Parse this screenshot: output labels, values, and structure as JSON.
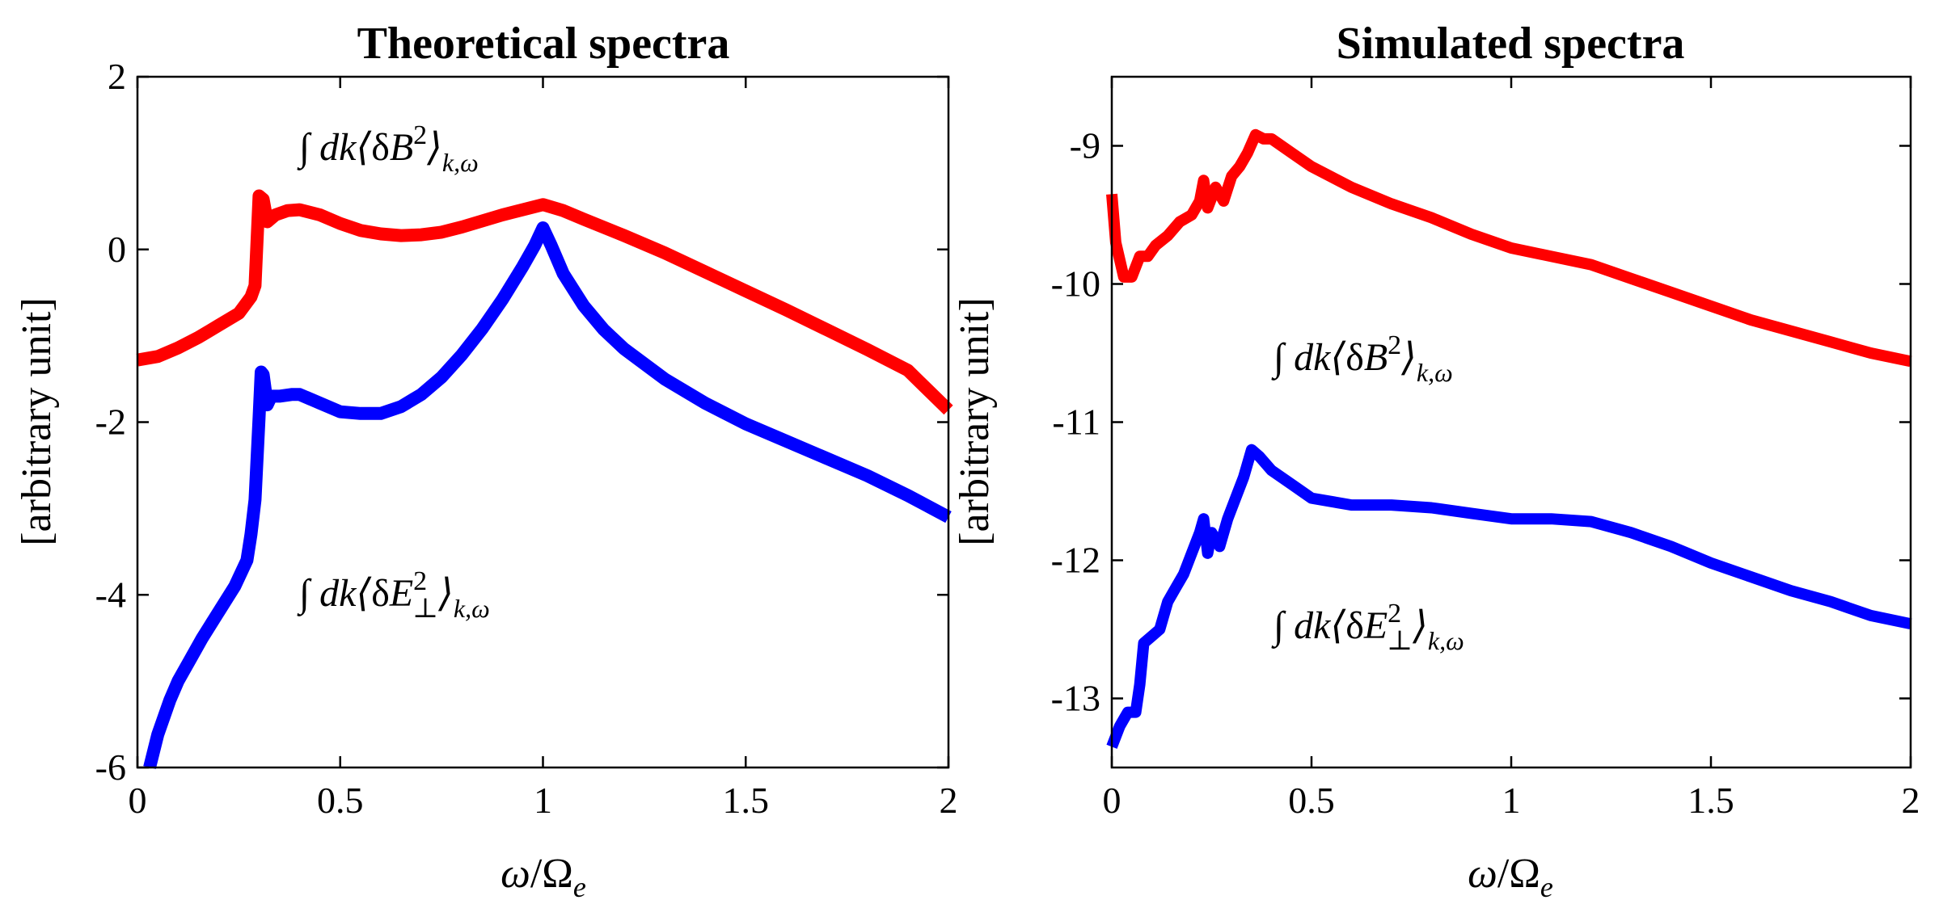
{
  "chart_data": [
    {
      "type": "line",
      "title": "Theoretical spectra",
      "xlabel": "ω/Ω_e",
      "ylabel": "[arbitrary unit]",
      "xlim": [
        0,
        2
      ],
      "ylim": [
        -6,
        2
      ],
      "xticks": [
        "0",
        "0.5",
        "1",
        "1.5",
        "2"
      ],
      "yticks": [
        "-6",
        "-4",
        "-2",
        "0",
        "2"
      ],
      "grid": false,
      "series": [
        {
          "label": "∫ dk⟨δB²⟩k,ω",
          "color": "#ff0000",
          "points": [
            [
              0,
              -1.28
            ],
            [
              0.05,
              -1.24
            ],
            [
              0.1,
              -1.14
            ],
            [
              0.15,
              -1.02
            ],
            [
              0.2,
              -0.88
            ],
            [
              0.25,
              -0.74
            ],
            [
              0.28,
              -0.55
            ],
            [
              0.29,
              -0.42
            ],
            [
              0.3,
              0.62
            ],
            [
              0.31,
              0.58
            ],
            [
              0.32,
              0.32
            ],
            [
              0.34,
              0.4
            ],
            [
              0.37,
              0.45
            ],
            [
              0.4,
              0.46
            ],
            [
              0.45,
              0.4
            ],
            [
              0.5,
              0.3
            ],
            [
              0.55,
              0.22
            ],
            [
              0.6,
              0.18
            ],
            [
              0.65,
              0.16
            ],
            [
              0.7,
              0.17
            ],
            [
              0.75,
              0.2
            ],
            [
              0.8,
              0.26
            ],
            [
              0.85,
              0.33
            ],
            [
              0.9,
              0.4
            ],
            [
              0.95,
              0.46
            ],
            [
              1.0,
              0.52
            ],
            [
              1.05,
              0.45
            ],
            [
              1.1,
              0.35
            ],
            [
              1.2,
              0.16
            ],
            [
              1.3,
              -0.04
            ],
            [
              1.4,
              -0.26
            ],
            [
              1.5,
              -0.48
            ],
            [
              1.6,
              -0.7
            ],
            [
              1.7,
              -0.93
            ],
            [
              1.8,
              -1.16
            ],
            [
              1.9,
              -1.4
            ],
            [
              2.0,
              -1.86
            ]
          ]
        },
        {
          "label": "∫ dk⟨δE⊥²⟩k,ω",
          "color": "#0000ff",
          "points": [
            [
              0.03,
              -6.0
            ],
            [
              0.05,
              -5.62
            ],
            [
              0.08,
              -5.22
            ],
            [
              0.1,
              -5.0
            ],
            [
              0.13,
              -4.75
            ],
            [
              0.16,
              -4.5
            ],
            [
              0.2,
              -4.2
            ],
            [
              0.24,
              -3.9
            ],
            [
              0.27,
              -3.6
            ],
            [
              0.28,
              -3.3
            ],
            [
              0.29,
              -2.9
            ],
            [
              0.3,
              -1.95
            ],
            [
              0.305,
              -1.42
            ],
            [
              0.31,
              -1.45
            ],
            [
              0.32,
              -1.8
            ],
            [
              0.33,
              -1.7
            ],
            [
              0.35,
              -1.7
            ],
            [
              0.38,
              -1.68
            ],
            [
              0.4,
              -1.68
            ],
            [
              0.45,
              -1.78
            ],
            [
              0.5,
              -1.88
            ],
            [
              0.55,
              -1.9
            ],
            [
              0.6,
              -1.9
            ],
            [
              0.65,
              -1.82
            ],
            [
              0.7,
              -1.68
            ],
            [
              0.75,
              -1.48
            ],
            [
              0.8,
              -1.22
            ],
            [
              0.85,
              -0.92
            ],
            [
              0.9,
              -0.58
            ],
            [
              0.95,
              -0.2
            ],
            [
              0.98,
              0.05
            ],
            [
              1.0,
              0.25
            ],
            [
              1.02,
              0.05
            ],
            [
              1.05,
              -0.28
            ],
            [
              1.1,
              -0.65
            ],
            [
              1.15,
              -0.93
            ],
            [
              1.2,
              -1.15
            ],
            [
              1.3,
              -1.5
            ],
            [
              1.4,
              -1.78
            ],
            [
              1.5,
              -2.02
            ],
            [
              1.6,
              -2.22
            ],
            [
              1.7,
              -2.42
            ],
            [
              1.8,
              -2.62
            ],
            [
              1.9,
              -2.85
            ],
            [
              2.0,
              -3.1
            ]
          ]
        }
      ],
      "annotations": [
        {
          "text": "∫ dk⟨δB²⟩k,ω",
          "near_series": 0
        },
        {
          "text": "∫ dk⟨δE⊥²⟩k,ω",
          "near_series": 1
        }
      ]
    },
    {
      "type": "line",
      "title": "Simulated spectra",
      "xlabel": "ω/Ω_e",
      "ylabel": "[arbitrary unit]",
      "xlim": [
        0,
        2
      ],
      "ylim": [
        -13.5,
        -8.5
      ],
      "xticks": [
        "0",
        "0.5",
        "1",
        "1.5",
        "2"
      ],
      "yticks": [
        "-13",
        "-12",
        "-11",
        "-10",
        "-9"
      ],
      "grid": false,
      "series": [
        {
          "label": "∫ dk⟨δB²⟩k,ω",
          "color": "#ff0000",
          "points": [
            [
              0.0,
              -9.35
            ],
            [
              0.01,
              -9.7
            ],
            [
              0.03,
              -9.95
            ],
            [
              0.05,
              -9.95
            ],
            [
              0.07,
              -9.8
            ],
            [
              0.09,
              -9.8
            ],
            [
              0.11,
              -9.72
            ],
            [
              0.14,
              -9.65
            ],
            [
              0.17,
              -9.55
            ],
            [
              0.2,
              -9.5
            ],
            [
              0.22,
              -9.4
            ],
            [
              0.23,
              -9.25
            ],
            [
              0.24,
              -9.45
            ],
            [
              0.26,
              -9.3
            ],
            [
              0.28,
              -9.4
            ],
            [
              0.3,
              -9.22
            ],
            [
              0.32,
              -9.15
            ],
            [
              0.34,
              -9.05
            ],
            [
              0.36,
              -8.92
            ],
            [
              0.38,
              -8.95
            ],
            [
              0.4,
              -8.95
            ],
            [
              0.45,
              -9.05
            ],
            [
              0.5,
              -9.15
            ],
            [
              0.6,
              -9.3
            ],
            [
              0.7,
              -9.42
            ],
            [
              0.8,
              -9.52
            ],
            [
              0.9,
              -9.64
            ],
            [
              1.0,
              -9.74
            ],
            [
              1.1,
              -9.8
            ],
            [
              1.2,
              -9.86
            ],
            [
              1.3,
              -9.96
            ],
            [
              1.4,
              -10.06
            ],
            [
              1.5,
              -10.16
            ],
            [
              1.6,
              -10.26
            ],
            [
              1.7,
              -10.34
            ],
            [
              1.8,
              -10.42
            ],
            [
              1.9,
              -10.5
            ],
            [
              2.0,
              -10.56
            ]
          ]
        },
        {
          "label": "∫ dk⟨δE⊥²⟩k,ω",
          "color": "#0000ff",
          "points": [
            [
              0.0,
              -13.35
            ],
            [
              0.02,
              -13.2
            ],
            [
              0.04,
              -13.1
            ],
            [
              0.06,
              -13.1
            ],
            [
              0.07,
              -12.9
            ],
            [
              0.08,
              -12.6
            ],
            [
              0.1,
              -12.55
            ],
            [
              0.12,
              -12.5
            ],
            [
              0.14,
              -12.3
            ],
            [
              0.16,
              -12.2
            ],
            [
              0.18,
              -12.1
            ],
            [
              0.2,
              -11.95
            ],
            [
              0.22,
              -11.8
            ],
            [
              0.23,
              -11.7
            ],
            [
              0.24,
              -11.95
            ],
            [
              0.25,
              -11.8
            ],
            [
              0.27,
              -11.9
            ],
            [
              0.29,
              -11.7
            ],
            [
              0.31,
              -11.55
            ],
            [
              0.33,
              -11.4
            ],
            [
              0.35,
              -11.2
            ],
            [
              0.37,
              -11.25
            ],
            [
              0.4,
              -11.35
            ],
            [
              0.45,
              -11.45
            ],
            [
              0.5,
              -11.55
            ],
            [
              0.6,
              -11.6
            ],
            [
              0.7,
              -11.6
            ],
            [
              0.8,
              -11.62
            ],
            [
              0.9,
              -11.66
            ],
            [
              1.0,
              -11.7
            ],
            [
              1.1,
              -11.7
            ],
            [
              1.2,
              -11.72
            ],
            [
              1.3,
              -11.8
            ],
            [
              1.4,
              -11.9
            ],
            [
              1.5,
              -12.02
            ],
            [
              1.6,
              -12.12
            ],
            [
              1.7,
              -12.22
            ],
            [
              1.8,
              -12.3
            ],
            [
              1.9,
              -12.4
            ],
            [
              2.0,
              -12.46
            ]
          ]
        }
      ],
      "annotations": [
        {
          "text": "∫ dk⟨δB²⟩k,ω",
          "near_series": 0
        },
        {
          "text": "∫ dk⟨δE⊥²⟩k,ω",
          "near_series": 1
        }
      ]
    }
  ]
}
